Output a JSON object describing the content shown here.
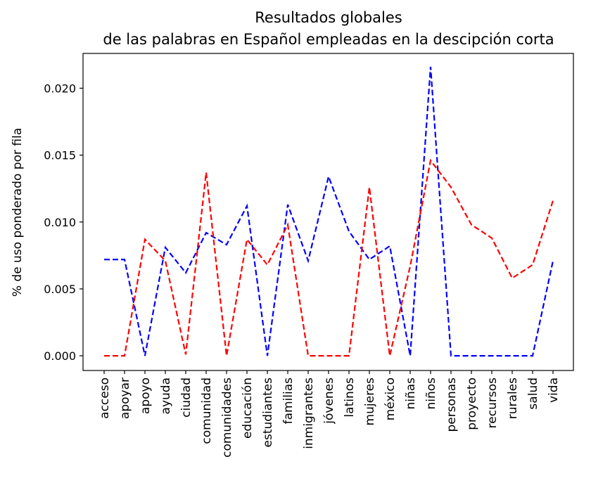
{
  "chart_data": {
    "type": "line",
    "title_line1": "Resultados globales",
    "title_line2": "de las palabras en Español empleadas en la descipción corta",
    "ylabel": "% de uso ponderado por fila",
    "xlabel": "",
    "categories": [
      "acceso",
      "apoyar",
      "apoyo",
      "ayuda",
      "ciudad",
      "comunidad",
      "comunidades",
      "educación",
      "estudiantes",
      "familias",
      "inmigrantes",
      "jóvenes",
      "latinos",
      "mujeres",
      "méxico",
      "niñas",
      "niños",
      "personas",
      "proyecto",
      "recursos",
      "rurales",
      "salud",
      "vida"
    ],
    "ylim": [
      -0.0011,
      0.0226
    ],
    "yticks": [
      0.0,
      0.005,
      0.01,
      0.015,
      0.02
    ],
    "ytick_labels": [
      "0.000",
      "0.005",
      "0.010",
      "0.015",
      "0.020"
    ],
    "grid": false,
    "series": [
      {
        "color": "#0000ff",
        "style": "dashed",
        "values": [
          0.0072,
          0.0072,
          0.0,
          0.0081,
          0.0062,
          0.0092,
          0.0083,
          0.0112,
          0.0,
          0.0113,
          0.0071,
          0.0134,
          0.0093,
          0.0072,
          0.0082,
          0.0,
          0.0216,
          0.0,
          0.0,
          0.0,
          0.0,
          0.0,
          0.0071
        ]
      },
      {
        "color": "#ff0000",
        "style": "dashed",
        "values": [
          0.0,
          0.0,
          0.0087,
          0.0071,
          0.0001,
          0.0137,
          0.0,
          0.0087,
          0.0068,
          0.0098,
          0.0,
          0.0,
          0.0,
          0.0126,
          0.0,
          0.0067,
          0.0146,
          0.0126,
          0.0098,
          0.0088,
          0.0058,
          0.0068,
          0.0116
        ]
      }
    ]
  }
}
